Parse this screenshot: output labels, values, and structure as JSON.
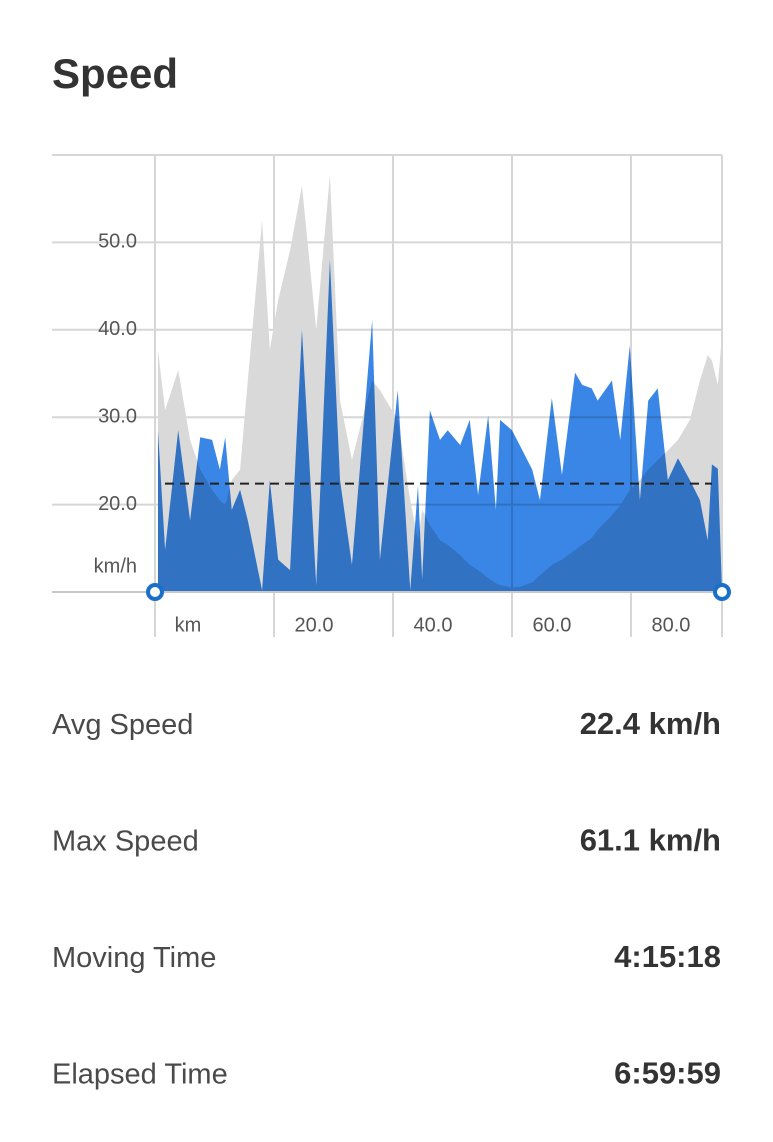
{
  "header": {
    "title": "Speed"
  },
  "chart_data": {
    "type": "area",
    "x_label": "km",
    "y_label": "km/h",
    "x": [
      0.5,
      1.7,
      3.9,
      5.9,
      7.6,
      9.6,
      10.9,
      11.8,
      12.9,
      14.3,
      15.6,
      18.0,
      19.3,
      20.7,
      22.7,
      24.7,
      27.1,
      29.4,
      31.1,
      33.1,
      36.5,
      37.8,
      40.8,
      42.9,
      44.2,
      44.9,
      46.2,
      47.9,
      49.2,
      51.3,
      52.9,
      54.3,
      56.0,
      57.3,
      58.0,
      60.0,
      61.3,
      63.4,
      64.7,
      66.7,
      68.4,
      70.6,
      71.8,
      73.4,
      74.4,
      76.8,
      78.2,
      79.8,
      81.5,
      82.9,
      84.5,
      86.2,
      87.9,
      89.9,
      91.6,
      92.9,
      93.6,
      94.6,
      95.3
    ],
    "series": [
      {
        "color": "#3a86e6",
        "values": [
          28.5,
          14.8,
          28.5,
          18.2,
          27.7,
          27.4,
          24,
          27.7,
          19.4,
          21.7,
          18.2,
          10.2,
          22.8,
          13.7,
          12.5,
          40,
          10.8,
          48,
          22.8,
          13.1,
          41.1,
          13.7,
          33.1,
          10.2,
          22.2,
          11.4,
          30.8,
          27.4,
          28.5,
          26.8,
          29.7,
          21.1,
          30.2,
          19.4,
          29.7,
          28.5,
          26.8,
          24,
          20.5,
          32.2,
          23.4,
          35.1,
          33.7,
          33.3,
          31.9,
          34.2,
          27.4,
          38.2,
          20.5,
          31.9,
          33.3,
          22.8,
          25.3,
          22.8,
          20.5,
          15.9,
          24.6,
          24.1,
          10.2
        ]
      },
      {
        "color": "#d9d9d9",
        "values": [
          37.7,
          30.8,
          35.4,
          27.4,
          24,
          21.7,
          20.5,
          19.9,
          22.8,
          24,
          34.2,
          52.5,
          37.7,
          43.4,
          49.1,
          56.5,
          40,
          57.7,
          31.9,
          25.1,
          34.2,
          33.1,
          29.7,
          20.5,
          15.9,
          19.4,
          17.7,
          15.9,
          15.4,
          14.2,
          13.1,
          12.5,
          11.6,
          11.0,
          10.8,
          10.5,
          10.6,
          11.1,
          11.9,
          13.1,
          13.7,
          14.8,
          15.4,
          16.2,
          17.1,
          18.8,
          19.9,
          21.7,
          22.8,
          24,
          25.1,
          26.2,
          27.4,
          29.7,
          34.2,
          37.1,
          36.5,
          33.7,
          39.4
        ]
      }
    ],
    "average_line": 22.4,
    "xlim": [
      0,
      95.3
    ],
    "ylim": [
      10,
      60
    ],
    "xticks": [
      {
        "value": 20,
        "label": "20.0"
      },
      {
        "value": 40,
        "label": "40.0"
      },
      {
        "value": 60,
        "label": "60.0"
      },
      {
        "value": 80,
        "label": "80.0"
      }
    ],
    "yticks": [
      {
        "value": 20,
        "label": "20.0"
      },
      {
        "value": 30,
        "label": "30.0"
      },
      {
        "value": 40,
        "label": "40.0"
      },
      {
        "value": 50,
        "label": "50.0"
      }
    ],
    "grid": true
  },
  "stats": [
    {
      "label": "Avg Speed",
      "value": "22.4 km/h"
    },
    {
      "label": "Max Speed",
      "value": "61.1 km/h"
    },
    {
      "label": "Moving Time",
      "value": "4:15:18"
    },
    {
      "label": "Elapsed Time",
      "value": "6:59:59"
    }
  ]
}
